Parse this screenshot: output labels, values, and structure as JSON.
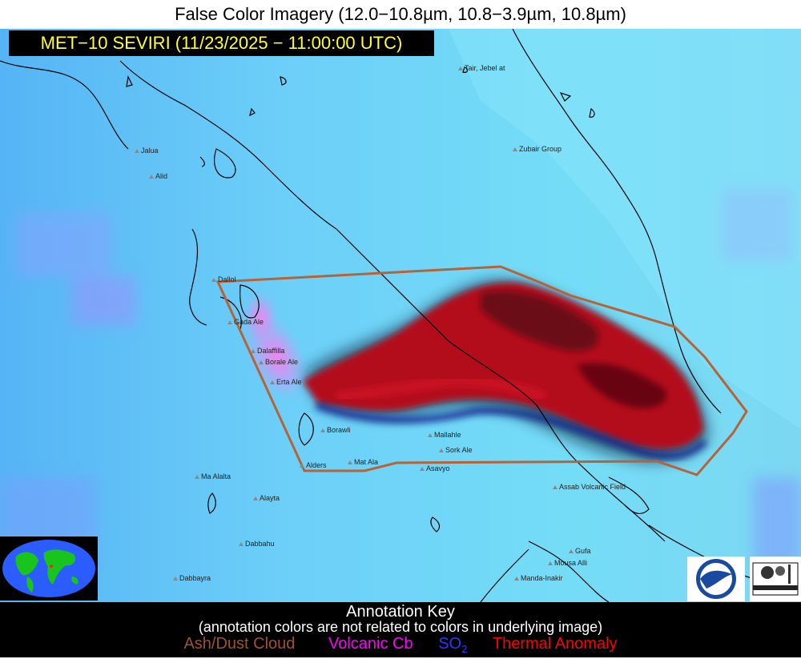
{
  "title": "False Color Imagery (12.0−10.8µm, 10.8−3.9µm, 10.8µm)",
  "satellite_label": "MET−10 SEVIRI (11/23/2025 − 11:00:00 UTC)",
  "volcanoes": [
    {
      "name": "Tair, Jebel at"
    },
    {
      "name": "Zubair Group"
    },
    {
      "name": "Jalua"
    },
    {
      "name": "Alid"
    },
    {
      "name": "Dallol"
    },
    {
      "name": "Gada Ale"
    },
    {
      "name": "Dalaffilla"
    },
    {
      "name": "Borale Ale"
    },
    {
      "name": "Erta Ale"
    },
    {
      "name": "Borawli"
    },
    {
      "name": "Mallahle"
    },
    {
      "name": "Sork Ale"
    },
    {
      "name": "Alders"
    },
    {
      "name": "Mat Ala"
    },
    {
      "name": "Asavyo"
    },
    {
      "name": "Ma Alalta"
    },
    {
      "name": "Alayta"
    },
    {
      "name": "Dabbahu"
    },
    {
      "name": "Dabbayra"
    },
    {
      "name": "Assab Volcanic Field"
    },
    {
      "name": "Gufa"
    },
    {
      "name": "Mousa Alli"
    },
    {
      "name": "Manda-Inakir"
    }
  ],
  "annotation_key": {
    "title": "Annotation Key",
    "subtitle": "(annotation colors are not related to colors in underlying image)",
    "items": [
      {
        "label": "Ash/Dust Cloud",
        "color": "#a0522d"
      },
      {
        "label": "Volcanic Cb",
        "color": "#ff00ff"
      },
      {
        "label": "SO",
        "sub": "2",
        "color": "#3333ff"
      },
      {
        "label": "Thermal Anomaly",
        "color": "#ff0000"
      }
    ]
  },
  "colors": {
    "background_cyan": "#66d4ff",
    "ash_plume": "#b01020",
    "outline": "#b5643a"
  },
  "logos": [
    "noaa-logo",
    "cimss-logo",
    "globe-inset"
  ]
}
